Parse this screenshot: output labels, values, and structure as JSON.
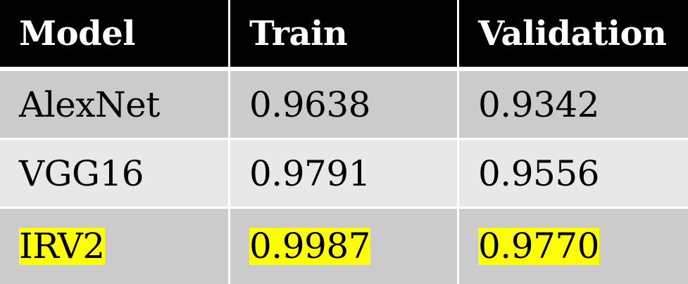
{
  "table": {
    "headers": [
      "Model",
      "Train",
      "Validation"
    ],
    "rows": [
      {
        "model": "AlexNet",
        "train": "0.9638",
        "validation": "0.9342"
      },
      {
        "model": "VGG16",
        "train": "0.9791",
        "validation": "0.9556"
      },
      {
        "model": "IRV2",
        "train": "0.9987",
        "validation": "0.9770",
        "highlighted": true
      }
    ],
    "colors": {
      "header_bg": "#000000",
      "header_text": "#ffffff",
      "row_dark": "#cbcbcb",
      "row_light": "#e8e8e8",
      "highlight": "#ffff00"
    }
  }
}
